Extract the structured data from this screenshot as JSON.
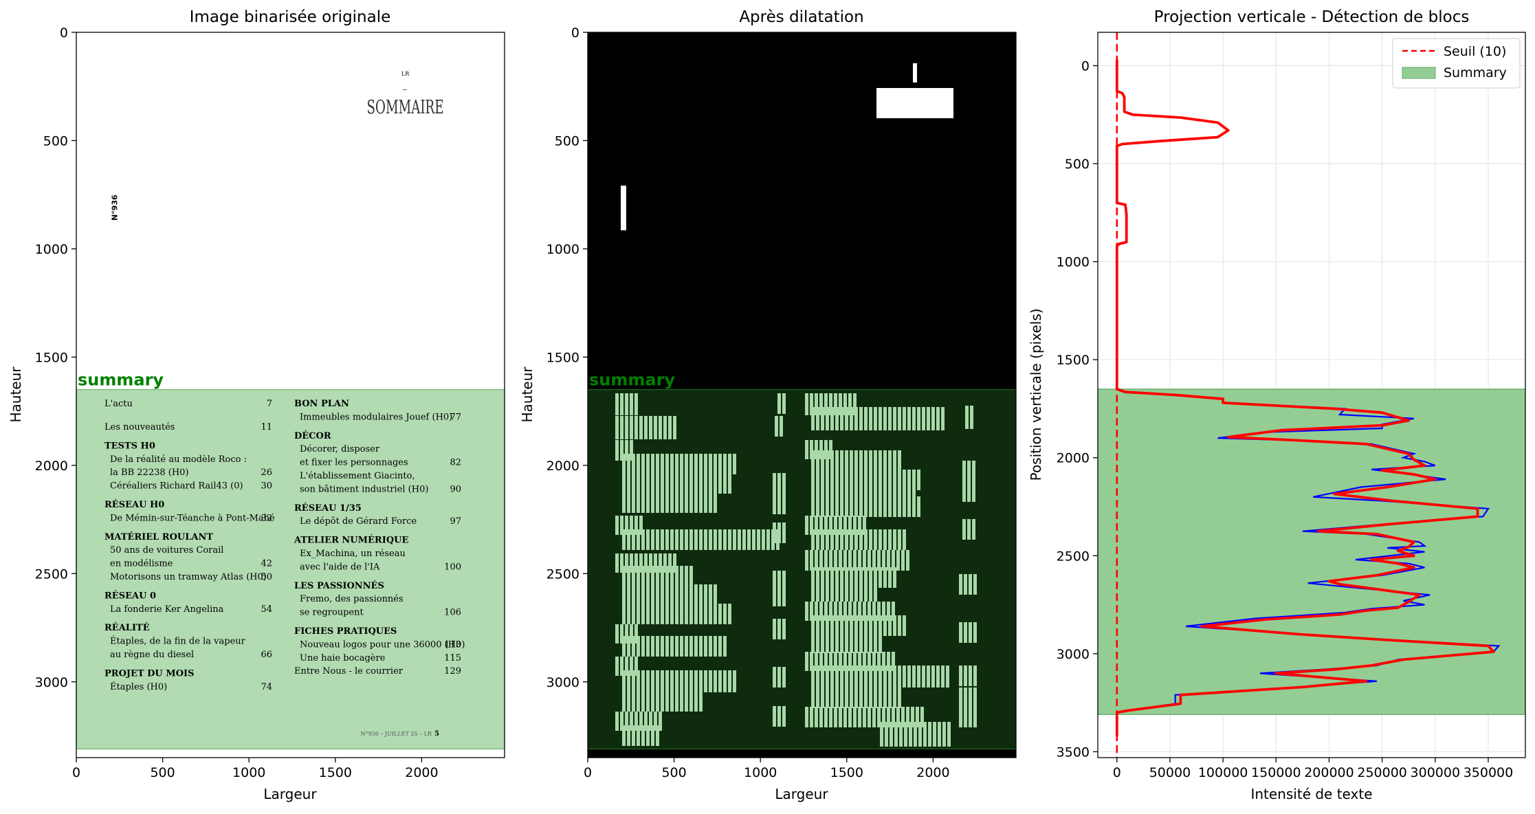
{
  "panels": {
    "original": {
      "title": "Image binarisée originale",
      "xlabel": "Largeur",
      "ylabel": "Hauteur",
      "xticks": [
        "0",
        "500",
        "1000",
        "1500",
        "2000"
      ],
      "yticks": [
        "0",
        "500",
        "1000",
        "1500",
        "2000",
        "2500",
        "3000"
      ],
      "summary_label": "summary"
    },
    "dilated": {
      "title": "Après dilatation",
      "xlabel": "Largeur",
      "ylabel": "Hauteur",
      "xticks": [
        "0",
        "500",
        "1000",
        "1500",
        "2000"
      ],
      "yticks": [
        "0",
        "500",
        "1000",
        "1500",
        "2000",
        "2500",
        "3000"
      ],
      "summary_label": "summary"
    },
    "projection": {
      "title": "Projection verticale - Détection de blocs",
      "xlabel": "Intensité de texte",
      "ylabel": "Position verticale (pixels)",
      "xticks": [
        "0",
        "50000",
        "100000",
        "150000",
        "200000",
        "250000",
        "300000",
        "350000"
      ],
      "yticks": [
        "0",
        "500",
        "1000",
        "1500",
        "2000",
        "2500",
        "3000",
        "3500"
      ],
      "legend": {
        "threshold": "Seuil (10)",
        "summary": "Summary"
      }
    }
  },
  "page_text": {
    "header_small": "LR",
    "title": "SOMMAIRE",
    "issue_vertical": "N°936",
    "footer": "N°936 – JUILLET 25 – LR",
    "page_number": "5",
    "left_column": [
      {
        "text": "L'actu",
        "page": "7",
        "kind": "item"
      },
      {
        "text": "Les nouveautés",
        "page": "11",
        "kind": "item"
      },
      {
        "text": "TESTS H0",
        "page": "",
        "kind": "heading"
      },
      {
        "text": "De la réalité au modèle Roco :",
        "page": "",
        "kind": "sub"
      },
      {
        "text": "la BB 22238 (H0)",
        "page": "26",
        "kind": "sub"
      },
      {
        "text": "Céréaliers Richard Rail43 (0)",
        "page": "30",
        "kind": "sub"
      },
      {
        "text": "RÉSEAU H0",
        "page": "",
        "kind": "heading"
      },
      {
        "text": "De Mémin-sur-Téanche à Pont-Mahé",
        "page": "32",
        "kind": "sub"
      },
      {
        "text": "MATÉRIEL ROULANT",
        "page": "",
        "kind": "heading"
      },
      {
        "text": "50 ans de voitures Corail",
        "page": "",
        "kind": "sub"
      },
      {
        "text": "en modélisme",
        "page": "42",
        "kind": "sub"
      },
      {
        "text": "Motorisons un tramway Atlas (H0)",
        "page": "50",
        "kind": "sub"
      },
      {
        "text": "RÉSEAU 0",
        "page": "",
        "kind": "heading"
      },
      {
        "text": "La fonderie Ker Angelina",
        "page": "54",
        "kind": "sub"
      },
      {
        "text": "RÉALITÉ",
        "page": "",
        "kind": "heading"
      },
      {
        "text": "Étaples, de la fin de la vapeur",
        "page": "",
        "kind": "sub"
      },
      {
        "text": "au règne du diesel",
        "page": "66",
        "kind": "sub"
      },
      {
        "text": "PROJET DU MOIS",
        "page": "",
        "kind": "heading"
      },
      {
        "text": "Étaples (H0)",
        "page": "74",
        "kind": "sub"
      }
    ],
    "right_column": [
      {
        "text": "BON PLAN",
        "page": "",
        "kind": "heading"
      },
      {
        "text": "Immeubles modulaires Jouef (H0)",
        "page": "77",
        "kind": "sub"
      },
      {
        "text": "DÉCOR",
        "page": "",
        "kind": "heading"
      },
      {
        "text": "Décorer, disposer",
        "page": "",
        "kind": "sub"
      },
      {
        "text": "et fixer les personnages",
        "page": "82",
        "kind": "sub"
      },
      {
        "text": "L'établissement Giacinto,",
        "page": "",
        "kind": "sub"
      },
      {
        "text": "son bâtiment industriel (H0)",
        "page": "90",
        "kind": "sub"
      },
      {
        "text": "RÉSEAU 1/35",
        "page": "",
        "kind": "heading"
      },
      {
        "text": "Le dépôt de Gérard Force",
        "page": "97",
        "kind": "sub"
      },
      {
        "text": "ATELIER NUMÉRIQUE",
        "page": "",
        "kind": "heading"
      },
      {
        "text": "Ex_Machina, un réseau",
        "page": "",
        "kind": "sub"
      },
      {
        "text": "avec l'aide de l'IA",
        "page": "100",
        "kind": "sub"
      },
      {
        "text": "LES PASSIONNÉS",
        "page": "",
        "kind": "heading"
      },
      {
        "text": "Fremo, des passionnés",
        "page": "",
        "kind": "sub"
      },
      {
        "text": "se regroupent",
        "page": "106",
        "kind": "sub"
      },
      {
        "text": "FICHES PRATIQUES",
        "page": "",
        "kind": "heading"
      },
      {
        "text": "Nouveau logos pour une 36000 (H0)",
        "page": "113",
        "kind": "sub"
      },
      {
        "text": "Une haie bocagère",
        "page": "115",
        "kind": "sub"
      },
      {
        "text": "Entre Nous - le courrier",
        "page": "129",
        "kind": "item"
      }
    ]
  },
  "colors": {
    "summary_fill": "#9bd09b",
    "summary_text": "#008000",
    "threshold": "#ff0000",
    "raw_curve": "#0000ff",
    "smooth_curve": "#ff0000",
    "dilated_bg": "#000000",
    "dilated_summary": "#0e2b0e",
    "dilated_text": "#a9d8a9"
  },
  "chart_data": [
    {
      "type": "heatmap",
      "title": "Image binarisée originale",
      "xlabel": "Largeur",
      "ylabel": "Hauteur",
      "xlim": [
        0,
        2480
      ],
      "ylim": [
        3350,
        0
      ],
      "summary_region": {
        "y": [
          1650,
          3310
        ],
        "label": "summary"
      }
    },
    {
      "type": "heatmap",
      "title": "Après dilatation",
      "xlabel": "Largeur",
      "ylabel": "Hauteur",
      "xlim": [
        0,
        2480
      ],
      "ylim": [
        3350,
        0
      ],
      "summary_region": {
        "y": [
          1650,
          3310
        ],
        "label": "summary"
      }
    },
    {
      "type": "line",
      "title": "Projection verticale - Détection de blocs",
      "xlabel": "Intensité de texte",
      "ylabel": "Position verticale (pixels)",
      "xlim": [
        -18000,
        385000
      ],
      "ylim": [
        3530,
        -170
      ],
      "grid": true,
      "legend_position": "top-right",
      "threshold": {
        "name": "Seuil (10)",
        "value": 10
      },
      "summary_region": {
        "name": "Summary",
        "y": [
          1650,
          3310
        ]
      },
      "series": [
        {
          "name": "",
          "color": "#0000ff",
          "points": [
            [
              0,
              -30
            ],
            [
              0,
              130
            ],
            [
              5000,
              140
            ],
            [
              7000,
              160
            ],
            [
              7000,
              235
            ],
            [
              15000,
              250
            ],
            [
              60000,
              265
            ],
            [
              95000,
              290
            ],
            [
              105000,
              330
            ],
            [
              95000,
              365
            ],
            [
              40000,
              385
            ],
            [
              5000,
              400
            ],
            [
              0,
              410
            ],
            [
              0,
              700
            ],
            [
              8000,
              710
            ],
            [
              9000,
              760
            ],
            [
              9000,
              900
            ],
            [
              2000,
              910
            ],
            [
              0,
              920
            ],
            [
              0,
              1650
            ],
            [
              8000,
              1665
            ],
            [
              55000,
              1680
            ],
            [
              100000,
              1700
            ],
            [
              100000,
              1720
            ],
            [
              215000,
              1750
            ],
            [
              210000,
              1780
            ],
            [
              280000,
              1800
            ],
            [
              250000,
              1830
            ],
            [
              250000,
              1850
            ],
            [
              140000,
              1870
            ],
            [
              95000,
              1900
            ],
            [
              160000,
              1910
            ],
            [
              240000,
              1930
            ],
            [
              280000,
              1980
            ],
            [
              270000,
              2000
            ],
            [
              290000,
              2020
            ],
            [
              300000,
              2040
            ],
            [
              240000,
              2060
            ],
            [
              270000,
              2080
            ],
            [
              310000,
              2110
            ],
            [
              230000,
              2150
            ],
            [
              185000,
              2200
            ],
            [
              250000,
              2220
            ],
            [
              350000,
              2260
            ],
            [
              345000,
              2300
            ],
            [
              250000,
              2340
            ],
            [
              175000,
              2375
            ],
            [
              235000,
              2390
            ],
            [
              285000,
              2430
            ],
            [
              290000,
              2450
            ],
            [
              255000,
              2460
            ],
            [
              290000,
              2480
            ],
            [
              225000,
              2520
            ],
            [
              275000,
              2540
            ],
            [
              290000,
              2560
            ],
            [
              250000,
              2600
            ],
            [
              215000,
              2620
            ],
            [
              180000,
              2640
            ],
            [
              295000,
              2700
            ],
            [
              270000,
              2730
            ],
            [
              290000,
              2750
            ],
            [
              240000,
              2770
            ],
            [
              215000,
              2790
            ],
            [
              130000,
              2820
            ],
            [
              65000,
              2860
            ],
            [
              175000,
              2900
            ],
            [
              260000,
              2930
            ],
            [
              360000,
              2960
            ],
            [
              355000,
              2990
            ],
            [
              265000,
              3030
            ],
            [
              245000,
              3060
            ],
            [
              195000,
              3080
            ],
            [
              135000,
              3100
            ],
            [
              245000,
              3140
            ],
            [
              170000,
              3170
            ],
            [
              55000,
              3210
            ],
            [
              55000,
              3255
            ],
            [
              10000,
              3290
            ],
            [
              0,
              3300
            ],
            [
              0,
              3420
            ]
          ]
        },
        {
          "name": "",
          "color": "#ff0000",
          "points": [
            [
              0,
              -30
            ],
            [
              0,
              130
            ],
            [
              5000,
              140
            ],
            [
              7000,
              160
            ],
            [
              7000,
              235
            ],
            [
              15000,
              250
            ],
            [
              60000,
              265
            ],
            [
              95000,
              290
            ],
            [
              105000,
              330
            ],
            [
              95000,
              365
            ],
            [
              40000,
              385
            ],
            [
              5000,
              400
            ],
            [
              0,
              410
            ],
            [
              0,
              700
            ],
            [
              8000,
              710
            ],
            [
              9000,
              760
            ],
            [
              9000,
              900
            ],
            [
              2000,
              910
            ],
            [
              0,
              920
            ],
            [
              0,
              1650
            ],
            [
              8000,
              1665
            ],
            [
              55000,
              1680
            ],
            [
              100000,
              1700
            ],
            [
              100000,
              1720
            ],
            [
              205000,
              1750
            ],
            [
              250000,
              1770
            ],
            [
              275000,
              1810
            ],
            [
              250000,
              1835
            ],
            [
              155000,
              1860
            ],
            [
              105000,
              1895
            ],
            [
              165000,
              1910
            ],
            [
              235000,
              1930
            ],
            [
              275000,
              1980
            ],
            [
              280000,
              2010
            ],
            [
              290000,
              2040
            ],
            [
              250000,
              2065
            ],
            [
              280000,
              2085
            ],
            [
              300000,
              2110
            ],
            [
              255000,
              2150
            ],
            [
              205000,
              2185
            ],
            [
              260000,
              2220
            ],
            [
              340000,
              2260
            ],
            [
              340000,
              2300
            ],
            [
              255000,
              2340
            ],
            [
              190000,
              2375
            ],
            [
              245000,
              2390
            ],
            [
              280000,
              2430
            ],
            [
              275000,
              2455
            ],
            [
              265000,
              2475
            ],
            [
              280000,
              2500
            ],
            [
              240000,
              2520
            ],
            [
              265000,
              2540
            ],
            [
              280000,
              2560
            ],
            [
              245000,
              2600
            ],
            [
              200000,
              2630
            ],
            [
              210000,
              2645
            ],
            [
              285000,
              2700
            ],
            [
              275000,
              2735
            ],
            [
              265000,
              2765
            ],
            [
              235000,
              2780
            ],
            [
              210000,
              2800
            ],
            [
              140000,
              2825
            ],
            [
              80000,
              2860
            ],
            [
              170000,
              2900
            ],
            [
              255000,
              2930
            ],
            [
              350000,
              2960
            ],
            [
              355000,
              2990
            ],
            [
              270000,
              3030
            ],
            [
              240000,
              3060
            ],
            [
              205000,
              3080
            ],
            [
              150000,
              3100
            ],
            [
              235000,
              3140
            ],
            [
              175000,
              3170
            ],
            [
              60000,
              3210
            ],
            [
              60000,
              3255
            ],
            [
              10000,
              3290
            ],
            [
              0,
              3300
            ],
            [
              0,
              3420
            ]
          ]
        }
      ]
    }
  ]
}
